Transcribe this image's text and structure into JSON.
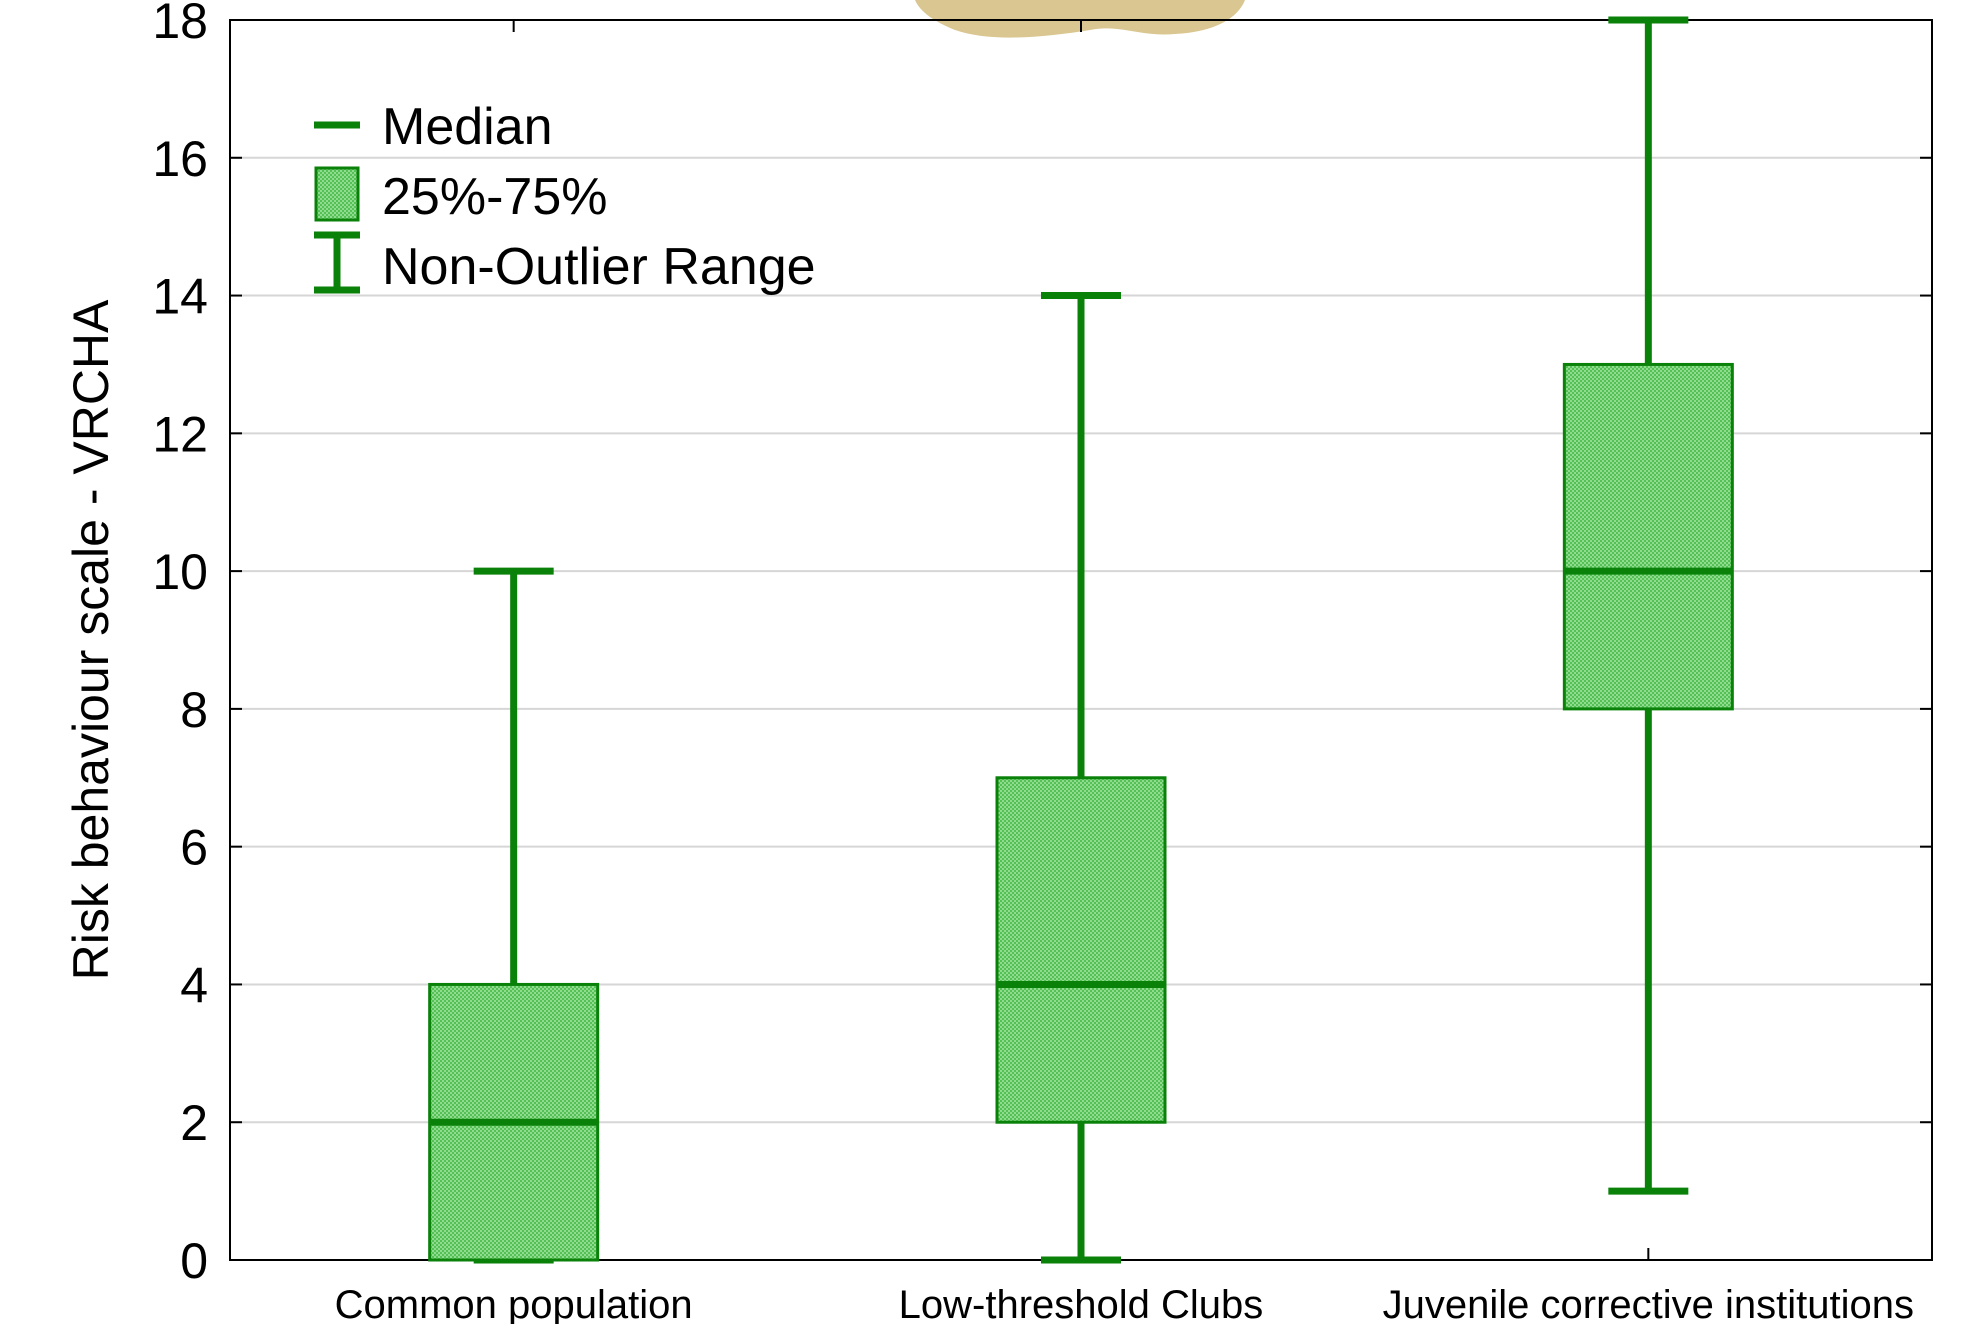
{
  "chart_data": {
    "type": "box",
    "title": "",
    "ylabel": "Risk behaviour scale - VRCHA",
    "xlabel": "",
    "ylim": [
      0,
      18
    ],
    "yticks": [
      "0",
      "2",
      "4",
      "6",
      "8",
      "10",
      "12",
      "14",
      "16",
      "18"
    ],
    "grid": true,
    "legend_placement": "top-left",
    "categories": [
      "Common population",
      "Low-threshold Clubs",
      "Juvenile corrective institutions"
    ],
    "boxes": [
      {
        "category": "Common population",
        "min": 0,
        "q1": 0,
        "median": 2,
        "q3": 4,
        "max": 10
      },
      {
        "category": "Low-threshold Clubs",
        "min": 0,
        "q1": 2,
        "median": 4,
        "q3": 7,
        "max": 14
      },
      {
        "category": "Juvenile corrective institutions",
        "min": 1,
        "q1": 8,
        "median": 10,
        "q3": 13,
        "max": 18
      }
    ],
    "legend": {
      "median": "Median",
      "box": "25%-75%",
      "whisker": "Non-Outlier Range"
    },
    "colors": {
      "line": "#0a820a",
      "fill": "#66cc66",
      "grid": "#d6d6d6"
    }
  }
}
